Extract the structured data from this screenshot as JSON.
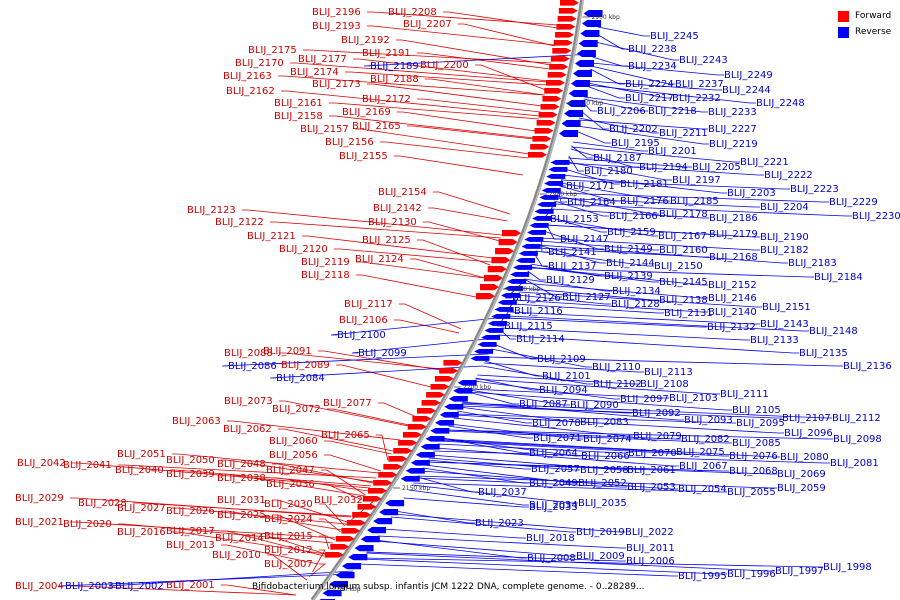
{
  "legend": {
    "forward_label": "Forward",
    "reverse_label": "Reverse",
    "forward_color": "#ff0000",
    "reverse_color": "#0000ff"
  },
  "title": "Bifidobacterium longum subsp. infantis JCM 1222 DNA, complete genome. - 0..28289...",
  "ticks": [
    "2900 kbp",
    "2950 kbp",
    "2900 kbp",
    "2250 kbp",
    "2200 kbp",
    "2150 kbp",
    "2100 kbp"
  ],
  "forward_labels": [
    "BLIJ_2196",
    "BLIJ_2208",
    "BLIJ_2193",
    "BLIJ_2207",
    "BLIJ_2192",
    "BLIJ_2175",
    "BLIJ_2191",
    "BLIJ_2170",
    "BLIJ_2177",
    "BLIJ_2200",
    "BLIJ_2174",
    "BLIJ_2188",
    "BLIJ_2163",
    "BLIJ_2173",
    "BLIJ_2162",
    "BLIJ_2172",
    "BLIJ_2161",
    "BLIJ_2169",
    "BLIJ_2158",
    "BLIJ_2157",
    "BLIJ_2165",
    "BLIJ_2156",
    "BLIJ_2155",
    "BLIJ_2154",
    "BLIJ_2123",
    "BLIJ_2142",
    "BLIJ_2122",
    "BLIJ_2130",
    "BLIJ_2121",
    "BLIJ_2125",
    "BLIJ_2120",
    "BLIJ_2119",
    "BLIJ_2124",
    "BLIJ_2118",
    "BLIJ_2117",
    "BLIJ_2106",
    "BLIJ_2088",
    "BLIJ_2091",
    "BLIJ_2089",
    "BLIJ_2073",
    "BLIJ_2077",
    "BLIJ_2072",
    "BLIJ_2063",
    "BLIJ_2062",
    "BLIJ_2065",
    "BLIJ_2060",
    "BLIJ_2056",
    "BLIJ_2051",
    "BLIJ_2050",
    "BLIJ_2042",
    "BLIJ_2041",
    "BLIJ_2040",
    "BLIJ_2048",
    "BLIJ_2039",
    "BLIJ_2047",
    "BLIJ_2038",
    "BLIJ_2036",
    "BLIJ_2029",
    "BLIJ_2031",
    "BLIJ_2032",
    "BLIJ_2028",
    "BLIJ_2027",
    "BLIJ_2026",
    "BLIJ_2030",
    "BLIJ_2025",
    "BLIJ_2024",
    "BLIJ_2021",
    "BLIJ_2020",
    "BLIJ_2016",
    "BLIJ_2017",
    "BLIJ_2015",
    "BLIJ_2014",
    "BLIJ_2013",
    "BLIJ_2012",
    "BLIJ_2010",
    "BLIJ_2007",
    "BLIJ_2001",
    "BLIJ_2004"
  ],
  "reverse_labels": [
    "BLIJ_2245",
    "BLIJ_2189",
    "BLIJ_2238",
    "BLIJ_2243",
    "BLIJ_2234",
    "BLIJ_2249",
    "BLIJ_2224",
    "BLIJ_2237",
    "BLIJ_2244",
    "BLIJ_2217",
    "BLIJ_2232",
    "BLIJ_2248",
    "BLIJ_2206",
    "BLIJ_2218",
    "BLIJ_2233",
    "BLIJ_2202",
    "BLIJ_2227",
    "BLIJ_2195",
    "BLIJ_2211",
    "BLIJ_2219",
    "BLIJ_2201",
    "BLIJ_2187",
    "BLIJ_2221",
    "BLIJ_2194",
    "BLIJ_2205",
    "BLIJ_2222",
    "BLIJ_2180",
    "BLIJ_2197",
    "BLIJ_2223",
    "BLIJ_2171",
    "BLIJ_2181",
    "BLIJ_2203",
    "BLIJ_2229",
    "BLIJ_2164",
    "BLIJ_2176",
    "BLIJ_2185",
    "BLIJ_2204",
    "BLIJ_2230",
    "BLIJ_2166",
    "BLIJ_2178",
    "BLIJ_2186",
    "BLIJ_2153",
    "BLIJ_2159",
    "BLIJ_2167",
    "BLIJ_2179",
    "BLIJ_2190",
    "BLIJ_2147",
    "BLIJ_2149",
    "BLIJ_2160",
    "BLIJ_2182",
    "BLIJ_2141",
    "BLIJ_2144",
    "BLIJ_2168",
    "BLIJ_2137",
    "BLIJ_2150",
    "BLIJ_2183",
    "BLIJ_2129",
    "BLIJ_2139",
    "BLIJ_2145",
    "BLIJ_2152",
    "BLIJ_2184",
    "BLIJ_2134",
    "BLIJ_2126",
    "BLIJ_2127",
    "BLIJ_2128",
    "BLIJ_2138",
    "BLIJ_2146",
    "BLIJ_2116",
    "BLIJ_2131",
    "BLIJ_2140",
    "BLIJ_2151",
    "BLIJ_2115",
    "BLIJ_2132",
    "BLIJ_2143",
    "BLIJ_2148",
    "BLIJ_2100",
    "BLIJ_2114",
    "BLIJ_2133",
    "BLIJ_2099",
    "BLIJ_2135",
    "BLIJ_2136",
    "BLIJ_2086",
    "BLIJ_2109",
    "BLIJ_2110",
    "BLIJ_2113",
    "BLIJ_2084",
    "BLIJ_2101",
    "BLIJ_2102",
    "BLIJ_2108",
    "BLIJ_2094",
    "BLIJ_2111",
    "BLIJ_2097",
    "BLIJ_2103",
    "BLIJ_2087",
    "BLIJ_2090",
    "BLIJ_2105",
    "BLIJ_2092",
    "BLIJ_2107",
    "BLIJ_2112",
    "BLIJ_2093",
    "BLIJ_2095",
    "BLIJ_2078",
    "BLIJ_2083",
    "BLIJ_2096",
    "BLIJ_2098",
    "BLIJ_2071",
    "BLIJ_2074",
    "BLIJ_2079",
    "BLIJ_2082",
    "BLIJ_2085",
    "BLIJ_2064",
    "BLIJ_2066",
    "BLIJ_2070",
    "BLIJ_2075",
    "BLIJ_2076",
    "BLIJ_2080",
    "BLIJ_2057",
    "BLIJ_2058",
    "BLIJ_2061",
    "BLIJ_2067",
    "BLIJ_2068",
    "BLIJ_2081",
    "BLIJ_2049",
    "BLIJ_2052",
    "BLIJ_2053",
    "BLIJ_2069",
    "BLIJ_2037",
    "BLIJ_2054",
    "BLIJ_2055",
    "BLIJ_2059",
    "BLIJ_2034",
    "BLIJ_2035",
    "BLIJ_2033",
    "BLIJ_2023",
    "BLIJ_2019",
    "BLIJ_2022",
    "BLIJ_2018",
    "BLIJ_2011",
    "BLIJ_2009",
    "BLIJ_2008",
    "BLIJ_2006",
    "BLIJ_1995",
    "BLIJ_1996",
    "BLIJ_1997",
    "BLIJ_1998",
    "BLIJ_2003",
    "BLIJ_2002"
  ]
}
